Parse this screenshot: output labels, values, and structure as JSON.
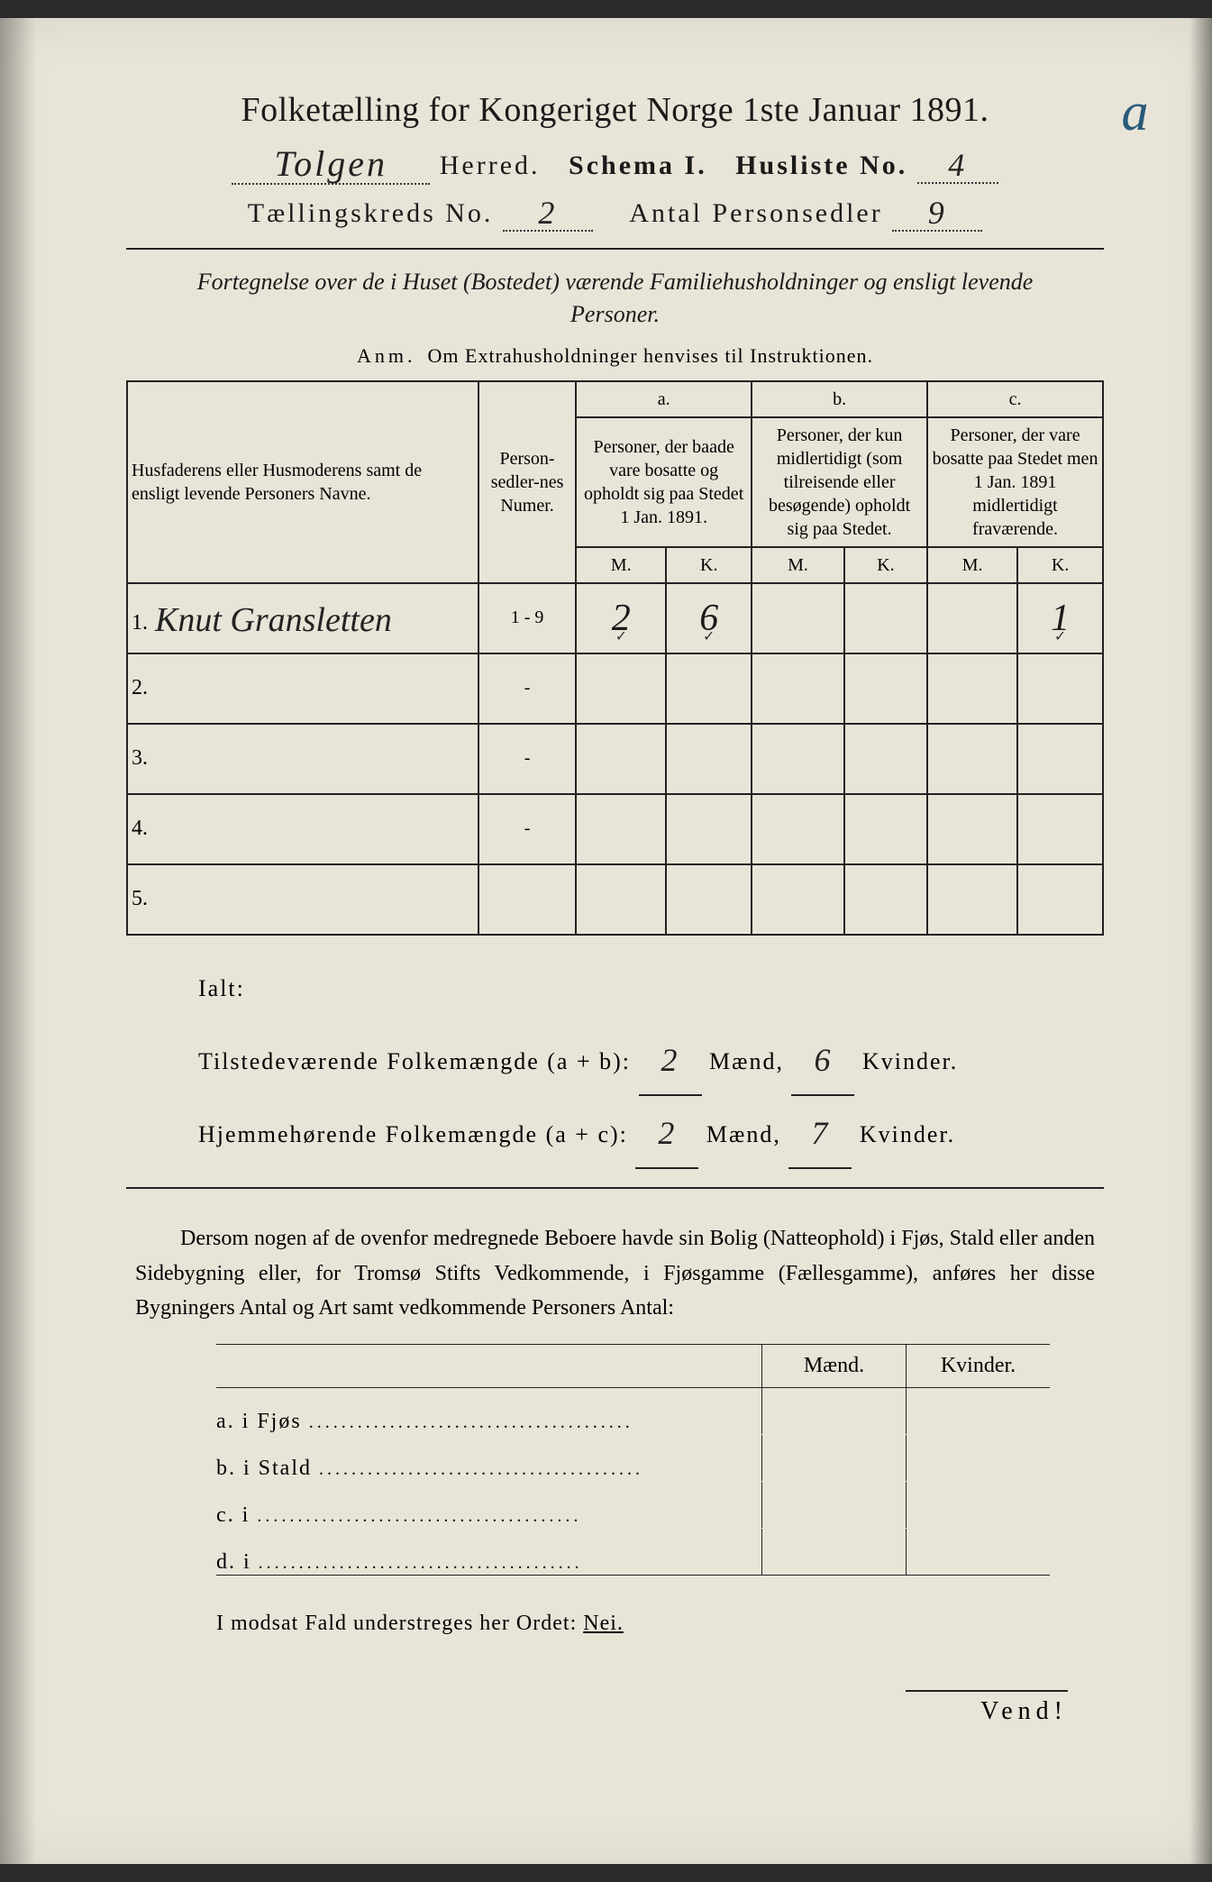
{
  "title": "Folketælling for Kongeriget Norge 1ste Januar 1891.",
  "annotation": "a",
  "header": {
    "herred_value": "Tolgen",
    "herred_label": "Herred.",
    "schema_label": "Schema I.",
    "husliste_label": "Husliste No.",
    "husliste_value": "4",
    "kreds_label": "Tællingskreds No.",
    "kreds_value": "2",
    "antal_label": "Antal Personsedler",
    "antal_value": "9"
  },
  "subtitle": "Fortegnelse over de i Huset (Bostedet) værende Familiehusholdninger og ensligt levende Personer.",
  "anm": {
    "label": "Anm.",
    "text": "Om Extrahusholdninger henvises til Instruktionen."
  },
  "columns": {
    "names": "Husfaderens eller Husmoderens samt de ensligt levende Personers Navne.",
    "numer": "Person-sedler-nes Numer.",
    "a_top": "a.",
    "a_text": "Personer, der baade vare bosatte og opholdt sig paa Stedet 1 Jan. 1891.",
    "b_top": "b.",
    "b_text": "Personer, der kun midlertidigt (som tilreisende eller besøgende) opholdt sig paa Stedet.",
    "c_top": "c.",
    "c_text": "Personer, der vare bosatte paa Stedet men 1 Jan. 1891 midlertidigt fraværende.",
    "m": "M.",
    "k": "K."
  },
  "rows": [
    {
      "n": "1.",
      "name": "Knut Gransletten",
      "numer": "1 - 9",
      "am": "2",
      "ak": "6",
      "bm": "",
      "bk": "",
      "cm": "",
      "ck": "1"
    },
    {
      "n": "2.",
      "name": "",
      "numer": "-",
      "am": "",
      "ak": "",
      "bm": "",
      "bk": "",
      "cm": "",
      "ck": ""
    },
    {
      "n": "3.",
      "name": "",
      "numer": "-",
      "am": "",
      "ak": "",
      "bm": "",
      "bk": "",
      "cm": "",
      "ck": ""
    },
    {
      "n": "4.",
      "name": "",
      "numer": "-",
      "am": "",
      "ak": "",
      "bm": "",
      "bk": "",
      "cm": "",
      "ck": ""
    },
    {
      "n": "5.",
      "name": "",
      "numer": "",
      "am": "",
      "ak": "",
      "bm": "",
      "bk": "",
      "cm": "",
      "ck": ""
    }
  ],
  "ialt": {
    "title": "Ialt:",
    "line1_label": "Tilstedeværende Folkemængde (a + b):",
    "line1_m": "2",
    "line1_k": "6",
    "line2_label": "Hjemmehørende Folkemængde (a + c):",
    "line2_m": "2",
    "line2_k": "7",
    "maend": "Mænd,",
    "kvinder": "Kvinder."
  },
  "paragraph": "Dersom nogen af de ovenfor medregnede Beboere havde sin Bolig (Natteophold) i Fjøs, Stald eller anden Sidebygning eller, for Tromsø Stifts Vedkommende, i Fjøsgamme (Fællesgamme), anføres her disse Bygningers Antal og Art samt vedkommende Personers Antal:",
  "buildings": {
    "maend": "Mænd.",
    "kvinder": "Kvinder.",
    "rows": [
      {
        "label": "a.  i      Fjøs"
      },
      {
        "label": "b.  i      Stald"
      },
      {
        "label": "c.  i"
      },
      {
        "label": "d.  i"
      }
    ]
  },
  "nei_line": "I modsat Fald understreges her Ordet:",
  "nei": "Nei.",
  "vend": "Vend!",
  "colors": {
    "paper": "#e8e4d8",
    "ink": "#1a1a1a",
    "pencil": "#2a5a7a"
  }
}
